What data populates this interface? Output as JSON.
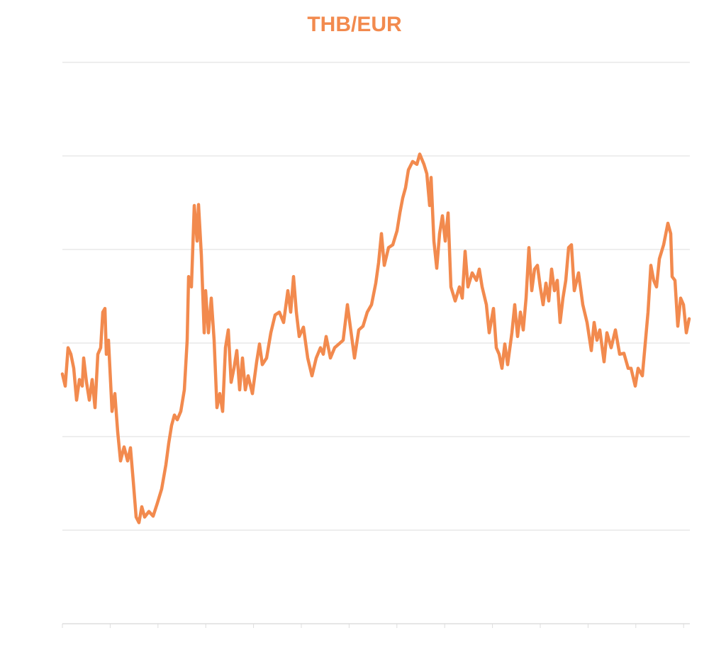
{
  "chart_data": {
    "type": "line",
    "title": "THB/EUR",
    "xlabel": "",
    "ylabel": "",
    "xlim": [
      0,
      885
    ],
    "ylim": [
      0,
      6
    ],
    "y_gridlines": [
      0,
      1,
      2,
      3,
      4,
      5,
      6
    ],
    "x_tick_step": 67.4,
    "x_tick_count": 14,
    "grid": true,
    "line_color": "#F28A4E",
    "grid_color": "#DDDDDD",
    "series": [
      {
        "name": "THB/EUR",
        "points": [
          [
            0,
            2.67
          ],
          [
            4,
            2.54
          ],
          [
            8,
            2.95
          ],
          [
            12,
            2.88
          ],
          [
            16,
            2.73
          ],
          [
            20,
            2.39
          ],
          [
            24,
            2.61
          ],
          [
            28,
            2.54
          ],
          [
            30,
            2.84
          ],
          [
            34,
            2.58
          ],
          [
            38,
            2.39
          ],
          [
            42,
            2.61
          ],
          [
            46,
            2.31
          ],
          [
            50,
            2.88
          ],
          [
            54,
            2.95
          ],
          [
            57,
            3.33
          ],
          [
            60,
            3.37
          ],
          [
            62,
            2.88
          ],
          [
            65,
            3.03
          ],
          [
            68,
            2.58
          ],
          [
            70,
            2.27
          ],
          [
            74,
            2.46
          ],
          [
            78,
            2.05
          ],
          [
            82,
            1.74
          ],
          [
            87,
            1.89
          ],
          [
            92,
            1.74
          ],
          [
            96,
            1.88
          ],
          [
            100,
            1.52
          ],
          [
            104,
            1.14
          ],
          [
            108,
            1.08
          ],
          [
            112,
            1.25
          ],
          [
            116,
            1.14
          ],
          [
            122,
            1.2
          ],
          [
            128,
            1.15
          ],
          [
            134,
            1.29
          ],
          [
            140,
            1.44
          ],
          [
            146,
            1.7
          ],
          [
            150,
            1.93
          ],
          [
            154,
            2.12
          ],
          [
            158,
            2.23
          ],
          [
            162,
            2.18
          ],
          [
            167,
            2.27
          ],
          [
            172,
            2.5
          ],
          [
            176,
            3.03
          ],
          [
            178,
            3.71
          ],
          [
            182,
            3.6
          ],
          [
            186,
            4.47
          ],
          [
            190,
            4.09
          ],
          [
            192,
            4.48
          ],
          [
            196,
            3.94
          ],
          [
            200,
            3.11
          ],
          [
            202,
            3.56
          ],
          [
            206,
            3.11
          ],
          [
            210,
            3.48
          ],
          [
            214,
            3.03
          ],
          [
            218,
            2.31
          ],
          [
            222,
            2.46
          ],
          [
            226,
            2.27
          ],
          [
            230,
            2.95
          ],
          [
            234,
            3.14
          ],
          [
            238,
            2.58
          ],
          [
            242,
            2.73
          ],
          [
            246,
            2.92
          ],
          [
            250,
            2.5
          ],
          [
            254,
            2.84
          ],
          [
            258,
            2.5
          ],
          [
            262,
            2.65
          ],
          [
            268,
            2.46
          ],
          [
            274,
            2.8
          ],
          [
            278,
            2.99
          ],
          [
            282,
            2.77
          ],
          [
            288,
            2.84
          ],
          [
            294,
            3.11
          ],
          [
            300,
            3.3
          ],
          [
            306,
            3.33
          ],
          [
            312,
            3.22
          ],
          [
            318,
            3.56
          ],
          [
            322,
            3.33
          ],
          [
            326,
            3.71
          ],
          [
            330,
            3.33
          ],
          [
            334,
            3.07
          ],
          [
            340,
            3.17
          ],
          [
            346,
            2.84
          ],
          [
            352,
            2.65
          ],
          [
            358,
            2.84
          ],
          [
            364,
            2.95
          ],
          [
            368,
            2.88
          ],
          [
            372,
            3.07
          ],
          [
            378,
            2.84
          ],
          [
            384,
            2.95
          ],
          [
            390,
            2.99
          ],
          [
            396,
            3.03
          ],
          [
            402,
            3.41
          ],
          [
            406,
            3.18
          ],
          [
            412,
            2.84
          ],
          [
            418,
            3.14
          ],
          [
            424,
            3.18
          ],
          [
            430,
            3.33
          ],
          [
            436,
            3.41
          ],
          [
            442,
            3.64
          ],
          [
            446,
            3.86
          ],
          [
            450,
            4.17
          ],
          [
            454,
            3.83
          ],
          [
            460,
            4.02
          ],
          [
            466,
            4.05
          ],
          [
            472,
            4.2
          ],
          [
            476,
            4.39
          ],
          [
            480,
            4.55
          ],
          [
            484,
            4.66
          ],
          [
            488,
            4.85
          ],
          [
            494,
            4.94
          ],
          [
            500,
            4.91
          ],
          [
            504,
            5.02
          ],
          [
            510,
            4.91
          ],
          [
            514,
            4.81
          ],
          [
            518,
            4.47
          ],
          [
            520,
            4.77
          ],
          [
            524,
            4.09
          ],
          [
            528,
            3.8
          ],
          [
            532,
            4.17
          ],
          [
            536,
            4.36
          ],
          [
            540,
            4.09
          ],
          [
            544,
            4.39
          ],
          [
            548,
            3.6
          ],
          [
            554,
            3.45
          ],
          [
            560,
            3.6
          ],
          [
            564,
            3.48
          ],
          [
            568,
            3.98
          ],
          [
            572,
            3.6
          ],
          [
            578,
            3.75
          ],
          [
            584,
            3.67
          ],
          [
            588,
            3.79
          ],
          [
            592,
            3.6
          ],
          [
            598,
            3.41
          ],
          [
            602,
            3.11
          ],
          [
            608,
            3.37
          ],
          [
            612,
            2.95
          ],
          [
            616,
            2.88
          ],
          [
            620,
            2.73
          ],
          [
            624,
            2.99
          ],
          [
            628,
            2.77
          ],
          [
            634,
            3.11
          ],
          [
            638,
            3.41
          ],
          [
            642,
            3.07
          ],
          [
            646,
            3.33
          ],
          [
            650,
            3.14
          ],
          [
            654,
            3.48
          ],
          [
            658,
            4.02
          ],
          [
            662,
            3.56
          ],
          [
            666,
            3.79
          ],
          [
            670,
            3.83
          ],
          [
            674,
            3.6
          ],
          [
            678,
            3.41
          ],
          [
            682,
            3.64
          ],
          [
            686,
            3.45
          ],
          [
            690,
            3.79
          ],
          [
            694,
            3.56
          ],
          [
            698,
            3.67
          ],
          [
            702,
            3.22
          ],
          [
            706,
            3.48
          ],
          [
            710,
            3.67
          ],
          [
            714,
            4.02
          ],
          [
            718,
            4.05
          ],
          [
            722,
            3.56
          ],
          [
            728,
            3.75
          ],
          [
            734,
            3.41
          ],
          [
            740,
            3.22
          ],
          [
            746,
            2.92
          ],
          [
            750,
            3.22
          ],
          [
            754,
            3.03
          ],
          [
            758,
            3.14
          ],
          [
            764,
            2.8
          ],
          [
            768,
            3.11
          ],
          [
            774,
            2.95
          ],
          [
            780,
            3.14
          ],
          [
            786,
            2.88
          ],
          [
            792,
            2.89
          ],
          [
            798,
            2.73
          ],
          [
            802,
            2.73
          ],
          [
            808,
            2.54
          ],
          [
            812,
            2.73
          ],
          [
            818,
            2.65
          ],
          [
            822,
            2.99
          ],
          [
            826,
            3.33
          ],
          [
            830,
            3.83
          ],
          [
            834,
            3.67
          ],
          [
            838,
            3.6
          ],
          [
            842,
            3.9
          ],
          [
            848,
            4.05
          ],
          [
            854,
            4.28
          ],
          [
            858,
            4.17
          ],
          [
            860,
            3.71
          ],
          [
            864,
            3.67
          ],
          [
            868,
            3.18
          ],
          [
            872,
            3.48
          ],
          [
            876,
            3.41
          ],
          [
            880,
            3.11
          ],
          [
            884,
            3.26
          ]
        ]
      }
    ]
  }
}
